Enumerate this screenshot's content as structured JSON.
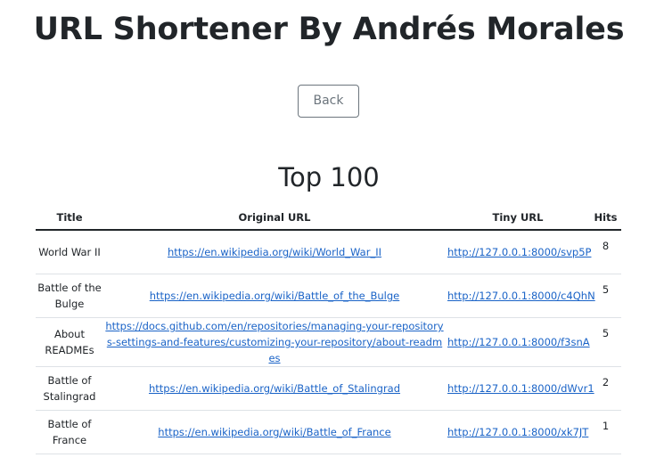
{
  "header": {
    "title": "URL Shortener By Andrés Morales",
    "back_label": "Back"
  },
  "section": {
    "title": "Top 100"
  },
  "table": {
    "columns": [
      "Title",
      "Original URL",
      "Tiny URL",
      "Hits"
    ],
    "rows": [
      {
        "title": "World War II",
        "original_url": "https://en.wikipedia.org/wiki/World_War_II",
        "tiny_url": "http://127.0.0.1:8000/svp5P",
        "hits": "8"
      },
      {
        "title": "Battle of the Bulge",
        "original_url": "https://en.wikipedia.org/wiki/Battle_of_the_Bulge",
        "tiny_url": "http://127.0.0.1:8000/c4QhN",
        "hits": "5"
      },
      {
        "title": "About READMEs",
        "original_url": "https://docs.github.com/en/repositories/managing-your-repositorys-settings-and-features/customizing-your-repository/about-readmes",
        "tiny_url": "http://127.0.0.1:8000/f3snA",
        "hits": "5"
      },
      {
        "title": "Battle of Stalingrad",
        "original_url": "https://en.wikipedia.org/wiki/Battle_of_Stalingrad",
        "tiny_url": "http://127.0.0.1:8000/dWvr1",
        "hits": "2"
      },
      {
        "title": "Battle of France",
        "original_url": "https://en.wikipedia.org/wiki/Battle_of_France",
        "tiny_url": "http://127.0.0.1:8000/xk7JT",
        "hits": "1"
      }
    ]
  }
}
